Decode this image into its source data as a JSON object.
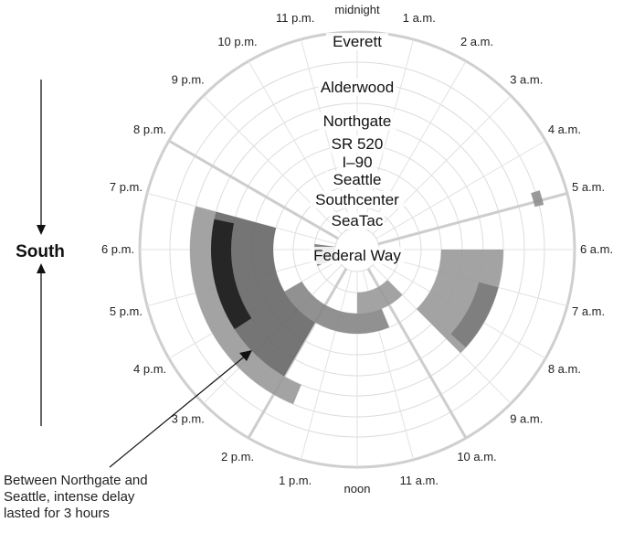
{
  "chart_data": {
    "type": "radial-heatmap",
    "direction_label": "South",
    "annotation": "Between Northgate and Seattle, intense delay lasted for 3 hours",
    "hour_labels": [
      "midnight",
      "1 a.m.",
      "2 a.m.",
      "3 a.m.",
      "4 a.m.",
      "5 a.m.",
      "6 a.m.",
      "7 a.m.",
      "8 a.m.",
      "9 a.m.",
      "10 a.m.",
      "11 a.m.",
      "noon",
      "1 p.m.",
      "2 p.m.",
      "3 p.m.",
      "4 p.m.",
      "5 p.m.",
      "6 p.m.",
      "7 p.m.",
      "8 p.m.",
      "9 p.m.",
      "10 p.m.",
      "11 p.m."
    ],
    "locations_outer_to_inner": [
      "Everett",
      "Alderwood",
      "Northgate",
      "SR 520",
      "I–90",
      "Seattle",
      "Southcenter",
      "SeaTac",
      "Federal Way"
    ],
    "congestion": [
      {
        "from_hour": 6.0,
        "to_hour": 9.0,
        "from_location": "Northgate",
        "to_location": "Seattle",
        "level": 0.35
      },
      {
        "from_hour": 7.0,
        "to_hour": 8.8,
        "from_location": "Northgate",
        "to_location": "SR 520",
        "level": 0.5
      },
      {
        "from_hour": 13.5,
        "to_hour": 19.0,
        "from_location": "Alderwood",
        "to_location": "Northgate",
        "level": 0.35
      },
      {
        "from_hour": 14.0,
        "to_hour": 19.0,
        "from_location": "Northgate",
        "to_location": "Seattle",
        "level": 0.6
      },
      {
        "from_hour": 15.8,
        "to_hour": 18.8,
        "from_location": "Northgate",
        "to_location": "SR 520",
        "level": 0.95
      },
      {
        "from_hour": 10.5,
        "to_hour": 16.0,
        "from_location": "Seattle",
        "to_location": "Southcenter",
        "level": 0.45
      },
      {
        "from_hour": 9.0,
        "to_hour": 12.0,
        "from_location": "Southcenter",
        "to_location": "SeaTac",
        "level": 0.35
      },
      {
        "from_hour": 16.5,
        "to_hour": 18.5,
        "from_location": "SeaTac",
        "to_location": "Federal Way",
        "level": 0.5
      },
      {
        "from_hour": 4.8,
        "to_hour": 5.1,
        "from_location": "Everett",
        "to_location": "Everett",
        "level": 0.4
      }
    ]
  }
}
